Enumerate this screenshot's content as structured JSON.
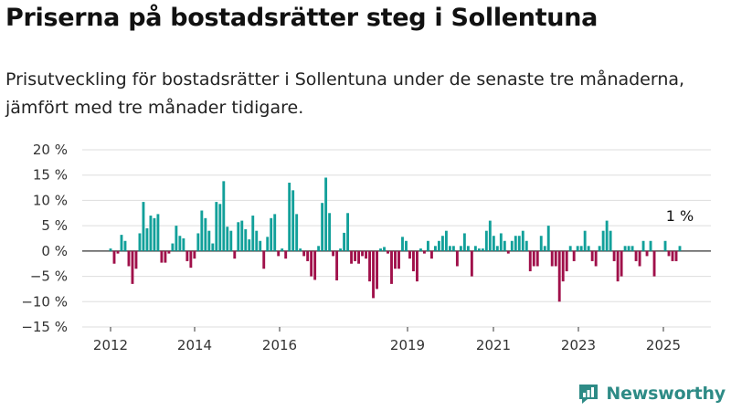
{
  "title": "Priserna på bostadsrätter steg i Sollentuna",
  "subtitle": "Prisutveckling för bostadsrätter i Sollentuna under de senaste tre månaderna, jämfört med tre månader tidigare.",
  "brand": {
    "name": "Newsworthy",
    "icon": "newsworthy-logo-icon",
    "color": "#2e8b86"
  },
  "colors": {
    "positive": "#12a09a",
    "negative": "#a0104a",
    "grid": "#dddddd",
    "baseline": "#333333"
  },
  "chart_data": {
    "type": "bar",
    "title": "Priserna på bostadsrätter steg i Sollentuna",
    "subtitle": "Prisutveckling för bostadsrätter i Sollentuna under de senaste tre månaderna, jämfört med tre månader tidigare.",
    "xlabel": "",
    "ylabel": "",
    "ylim": [
      -15,
      20
    ],
    "y_ticks": [
      20,
      15,
      10,
      5,
      0,
      -5,
      -10,
      -15
    ],
    "y_tick_labels": [
      "20 %",
      "15 %",
      "10 %",
      "5 %",
      "0 %",
      "−5 %",
      "−10 %",
      "−15 %"
    ],
    "x_ticks": [
      "2012",
      "2014",
      "2016",
      "2019",
      "2021",
      "2023",
      "2025"
    ],
    "grid": true,
    "annotation": {
      "text": "1 %",
      "target": "last"
    },
    "values": [
      0.5,
      -2.5,
      -0.5,
      3.2,
      2.0,
      -3.0,
      -6.5,
      -3.5,
      3.5,
      9.7,
      4.5,
      7.0,
      6.5,
      7.3,
      -2.3,
      -2.3,
      -0.5,
      1.5,
      5.0,
      3.0,
      2.5,
      -2.0,
      -3.3,
      -1.5,
      3.5,
      8.0,
      6.5,
      4.0,
      1.5,
      9.7,
      9.3,
      13.8,
      4.8,
      4.0,
      -1.5,
      5.7,
      6.0,
      4.3,
      2.3,
      7.0,
      4.0,
      2.0,
      -3.5,
      2.8,
      6.5,
      7.3,
      -1.0,
      0.5,
      -1.5,
      13.5,
      12.0,
      7.3,
      0.5,
      -1.0,
      -2.0,
      -5.0,
      -5.7,
      1.0,
      9.5,
      14.5,
      7.5,
      -1.0,
      -5.8,
      0.5,
      3.6,
      7.5,
      -2.5,
      -2.0,
      -2.5,
      -1.0,
      -1.5,
      -6.0,
      -9.3,
      -7.5,
      0.5,
      0.8,
      -0.5,
      -6.5,
      -3.5,
      -3.5,
      2.8,
      2.0,
      -1.5,
      -4.0,
      -6.0,
      0.5,
      -0.5,
      2.0,
      -1.5,
      1.0,
      2.0,
      3.0,
      4.0,
      1.0,
      1.0,
      -3.0,
      1.0,
      3.5,
      1.0,
      -5.0,
      1.0,
      0.5,
      0.5,
      4.0,
      6.0,
      3.0,
      1.0,
      3.5,
      2.0,
      -0.5,
      2.0,
      3.0,
      3.0,
      4.0,
      2.0,
      -4.0,
      -3.0,
      -3.0,
      3.0,
      1.0,
      5.0,
      -3.0,
      -3.0,
      -10.0,
      -6.0,
      -4.0,
      1.0,
      -2.0,
      1.0,
      1.0,
      4.0,
      1.0,
      -2.0,
      -3.0,
      1.0,
      4.0,
      6.0,
      4.0,
      -2.0,
      -6.0,
      -5.0,
      1.0,
      1.0,
      1.0,
      -2.0,
      -3.0,
      2.0,
      -1.0,
      2.0,
      -5.0,
      0.0,
      0.0,
      2.0,
      -1.0,
      -2.0,
      -2.0,
      1.0
    ]
  }
}
